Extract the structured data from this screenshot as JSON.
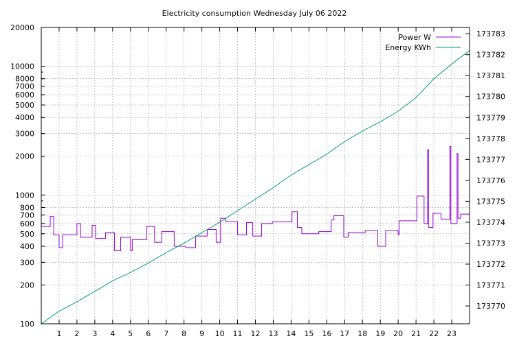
{
  "chart_data": {
    "type": "line",
    "title": "Electricity consumption Wednesday July 06 2022",
    "legend_placement": "top-right",
    "grid": true,
    "x_range": [
      0,
      24
    ],
    "x_ticks": [
      "1",
      "2",
      "3",
      "4",
      "5",
      "6",
      "7",
      "8",
      "9",
      "10",
      "11",
      "12",
      "13",
      "14",
      "15",
      "16",
      "17",
      "18",
      "19",
      "20",
      "21",
      "22",
      "23"
    ],
    "y_left": {
      "scale": "log",
      "range": [
        100,
        20000
      ],
      "ticks": [
        {
          "value": 100,
          "label": "100"
        },
        {
          "value": 200,
          "label": "200"
        },
        {
          "value": 300,
          "label": "300"
        },
        {
          "value": 400,
          "label": "400"
        },
        {
          "value": 500,
          "label": "500"
        },
        {
          "value": 600,
          "label": "600"
        },
        {
          "value": 700,
          "label": "700"
        },
        {
          "value": 800,
          "label": "800"
        },
        {
          "value": 1000,
          "label": "1000"
        },
        {
          "value": 2000,
          "label": "2000"
        },
        {
          "value": 3000,
          "label": "3000"
        },
        {
          "value": 4000,
          "label": "4000"
        },
        {
          "value": 5000,
          "label": "5000"
        },
        {
          "value": 6000,
          "label": "6000"
        },
        {
          "value": 7000,
          "label": "7000"
        },
        {
          "value": 8000,
          "label": "8000"
        },
        {
          "value": 10000,
          "label": "10000"
        },
        {
          "value": 20000,
          "label": "20000"
        }
      ]
    },
    "y_right": {
      "scale": "linear",
      "range": [
        173769.15,
        173783.3
      ],
      "ticks": [
        "173770",
        "173771",
        "173772",
        "173773",
        "173774",
        "173775",
        "173776",
        "173777",
        "173778",
        "173779",
        "173780",
        "173781",
        "173782",
        "173783"
      ]
    },
    "series": [
      {
        "name": "Power W",
        "color": "#9400d3",
        "axis": "left",
        "points": [
          [
            0,
            570
          ],
          [
            0.5,
            570
          ],
          [
            0.5,
            680
          ],
          [
            0.7,
            680
          ],
          [
            0.7,
            490
          ],
          [
            1.0,
            490
          ],
          [
            1.0,
            390
          ],
          [
            1.2,
            390
          ],
          [
            1.2,
            490
          ],
          [
            2.0,
            490
          ],
          [
            2.0,
            600
          ],
          [
            2.2,
            600
          ],
          [
            2.2,
            470
          ],
          [
            2.85,
            470
          ],
          [
            2.85,
            580
          ],
          [
            3.05,
            580
          ],
          [
            3.05,
            460
          ],
          [
            3.6,
            460
          ],
          [
            3.6,
            510
          ],
          [
            4.1,
            510
          ],
          [
            4.1,
            370
          ],
          [
            4.45,
            370
          ],
          [
            4.45,
            470
          ],
          [
            5.0,
            470
          ],
          [
            5.0,
            370
          ],
          [
            5.1,
            370
          ],
          [
            5.1,
            450
          ],
          [
            5.9,
            450
          ],
          [
            5.9,
            570
          ],
          [
            6.35,
            570
          ],
          [
            6.35,
            430
          ],
          [
            6.75,
            430
          ],
          [
            6.75,
            520
          ],
          [
            7.45,
            520
          ],
          [
            7.45,
            400
          ],
          [
            8.1,
            400
          ],
          [
            8.1,
            390
          ],
          [
            8.65,
            390
          ],
          [
            8.65,
            480
          ],
          [
            9.3,
            480
          ],
          [
            9.3,
            540
          ],
          [
            9.8,
            540
          ],
          [
            9.8,
            430
          ],
          [
            10.05,
            430
          ],
          [
            10.05,
            660
          ],
          [
            10.35,
            660
          ],
          [
            10.35,
            620
          ],
          [
            11.0,
            620
          ],
          [
            11.0,
            490
          ],
          [
            11.5,
            490
          ],
          [
            11.5,
            610
          ],
          [
            11.85,
            610
          ],
          [
            11.85,
            480
          ],
          [
            12.35,
            480
          ],
          [
            12.35,
            600
          ],
          [
            12.95,
            600
          ],
          [
            12.95,
            620
          ],
          [
            14.05,
            620
          ],
          [
            14.05,
            740
          ],
          [
            14.35,
            740
          ],
          [
            14.35,
            560
          ],
          [
            14.6,
            560
          ],
          [
            14.6,
            500
          ],
          [
            15.55,
            500
          ],
          [
            15.55,
            520
          ],
          [
            16.25,
            520
          ],
          [
            16.25,
            640
          ],
          [
            16.4,
            640
          ],
          [
            16.4,
            690
          ],
          [
            16.95,
            690
          ],
          [
            16.95,
            470
          ],
          [
            17.2,
            470
          ],
          [
            17.2,
            510
          ],
          [
            18.15,
            510
          ],
          [
            18.15,
            530
          ],
          [
            18.85,
            530
          ],
          [
            18.85,
            400
          ],
          [
            19.3,
            400
          ],
          [
            19.3,
            530
          ],
          [
            20.0,
            530
          ],
          [
            20.0,
            490
          ],
          [
            20.05,
            490
          ],
          [
            20.05,
            630
          ],
          [
            21.05,
            630
          ],
          [
            21.05,
            980
          ],
          [
            21.45,
            980
          ],
          [
            21.45,
            600
          ],
          [
            21.65,
            600
          ],
          [
            21.65,
            2250
          ],
          [
            21.7,
            2250
          ],
          [
            21.7,
            560
          ],
          [
            21.95,
            560
          ],
          [
            21.95,
            720
          ],
          [
            22.4,
            720
          ],
          [
            22.4,
            650
          ],
          [
            22.9,
            650
          ],
          [
            22.9,
            2380
          ],
          [
            22.95,
            2380
          ],
          [
            22.95,
            600
          ],
          [
            23.3,
            600
          ],
          [
            23.3,
            2100
          ],
          [
            23.35,
            2100
          ],
          [
            23.35,
            660
          ],
          [
            23.5,
            660
          ],
          [
            23.5,
            710
          ],
          [
            24,
            710
          ]
        ]
      },
      {
        "name": "Energy KWh",
        "color": "#009e73",
        "axis": "right",
        "points": [
          [
            0,
            173769.15
          ],
          [
            1,
            173769.75
          ],
          [
            2,
            173770.2
          ],
          [
            3,
            173770.7
          ],
          [
            4,
            173771.2
          ],
          [
            5,
            173771.6
          ],
          [
            6,
            173772.05
          ],
          [
            7,
            173772.55
          ],
          [
            8,
            173773.0
          ],
          [
            9,
            173773.5
          ],
          [
            10,
            173774.0
          ],
          [
            11,
            173774.55
          ],
          [
            12,
            173775.1
          ],
          [
            13,
            173775.65
          ],
          [
            14,
            173776.25
          ],
          [
            15,
            173776.75
          ],
          [
            16,
            173777.25
          ],
          [
            17,
            173777.85
          ],
          [
            18,
            173778.35
          ],
          [
            19,
            173778.8
          ],
          [
            20,
            173779.3
          ],
          [
            21,
            173779.95
          ],
          [
            22,
            173780.85
          ],
          [
            23,
            173781.55
          ],
          [
            24,
            173782.2
          ]
        ]
      }
    ]
  }
}
